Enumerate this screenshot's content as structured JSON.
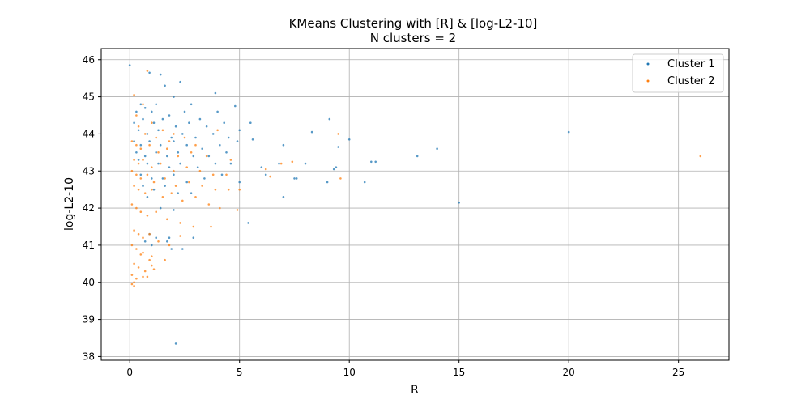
{
  "figure": {
    "title_line1": "KMeans Clustering with [R] & [log-L2-10]",
    "title_line2": "N clusters = 2"
  },
  "chart_data": {
    "type": "scatter",
    "title": "KMeans Clustering with [R] & [log-L2-10]",
    "subtitle": "N clusters = 2",
    "xlabel": "R",
    "ylabel": "log-L2-10",
    "xlim": [
      -1.3,
      27.3
    ],
    "ylim": [
      37.9,
      46.3
    ],
    "xticks": [
      0,
      5,
      10,
      15,
      20,
      25
    ],
    "yticks": [
      38,
      39,
      40,
      41,
      42,
      43,
      44,
      45,
      46
    ],
    "grid": true,
    "legend_position": "top-right",
    "series": [
      {
        "name": "Cluster 1",
        "color": "#1f77b4",
        "x": [
          0.0,
          0.9,
          1.4,
          2.3,
          1.6,
          3.9,
          2.0,
          2.8,
          1.2,
          0.5,
          0.3,
          0.7,
          1.0,
          1.8,
          2.5,
          3.2,
          4.0,
          4.8,
          0.2,
          0.6,
          1.1,
          1.5,
          2.1,
          2.7,
          3.5,
          4.3,
          5.0,
          0.4,
          0.8,
          1.3,
          1.9,
          2.4,
          3.0,
          3.8,
          4.5,
          5.5,
          0.2,
          0.5,
          0.9,
          1.4,
          2.0,
          2.6,
          3.3,
          4.1,
          4.9,
          6.0,
          7.0,
          8.3,
          9.1,
          9.5,
          10.0,
          0.3,
          0.7,
          1.2,
          1.7,
          2.2,
          2.9,
          3.6,
          4.4,
          5.6,
          6.8,
          7.6,
          8.0,
          9.4,
          11.0,
          11.2,
          13.1,
          14.0,
          20.0,
          0.4,
          0.8,
          1.3,
          1.8,
          2.3,
          3.1,
          3.9,
          4.6,
          6.2,
          7.5,
          9.0,
          9.3,
          10.7,
          0.5,
          1.0,
          1.5,
          2.0,
          2.6,
          3.4,
          4.2,
          5.0,
          7.0,
          0.6,
          1.1,
          1.6,
          2.2,
          2.8,
          0.8,
          1.4,
          2.0,
          2.9,
          5.4,
          15.0,
          0.9,
          1.7,
          2.4,
          0.7,
          1.2,
          1.0,
          1.9,
          2.1,
          1.8
        ],
        "y": [
          45.85,
          45.65,
          45.6,
          45.4,
          45.3,
          45.1,
          45.0,
          44.8,
          44.8,
          44.8,
          44.6,
          44.7,
          44.6,
          44.5,
          44.6,
          44.4,
          44.6,
          44.75,
          44.3,
          44.4,
          44.3,
          44.4,
          44.2,
          44.3,
          44.2,
          44.3,
          44.1,
          44.1,
          44.0,
          44.1,
          43.9,
          44.0,
          43.9,
          44.0,
          43.9,
          44.3,
          43.8,
          43.7,
          43.8,
          43.7,
          43.8,
          43.7,
          43.6,
          43.7,
          43.8,
          43.1,
          43.7,
          44.05,
          44.4,
          43.65,
          43.85,
          43.5,
          43.4,
          43.5,
          43.4,
          43.5,
          43.4,
          43.4,
          43.5,
          43.85,
          43.2,
          42.8,
          43.2,
          43.1,
          43.25,
          43.25,
          43.4,
          43.6,
          44.05,
          43.3,
          43.2,
          43.2,
          43.1,
          43.2,
          43.1,
          43.2,
          43.2,
          42.9,
          42.8,
          42.7,
          43.05,
          42.7,
          42.9,
          42.8,
          42.8,
          42.9,
          42.7,
          42.8,
          42.9,
          42.7,
          42.3,
          42.6,
          42.5,
          42.6,
          42.4,
          42.4,
          42.3,
          42.0,
          41.95,
          41.2,
          41.6,
          42.15,
          41.3,
          41.1,
          40.9,
          41.1,
          41.2,
          41.0,
          40.9,
          38.35,
          41.2
        ],
        "marker_size": 2
      },
      {
        "name": "Cluster 2",
        "color": "#ff7f0e",
        "x": [
          0.8,
          0.2,
          0.3,
          0.6,
          1.0,
          1.5,
          2.0,
          0.4,
          0.7,
          1.2,
          1.8,
          2.5,
          3.0,
          0.1,
          0.3,
          0.5,
          0.9,
          1.3,
          1.7,
          2.2,
          2.8,
          3.5,
          4.0,
          4.6,
          0.2,
          0.4,
          0.6,
          1.0,
          1.4,
          2.0,
          2.6,
          3.2,
          3.8,
          4.4,
          6.2,
          6.9,
          7.4,
          9.5,
          0.1,
          0.3,
          0.5,
          0.8,
          1.1,
          1.6,
          2.1,
          2.7,
          3.3,
          3.9,
          4.5,
          5.0,
          6.4,
          9.6,
          0.2,
          0.4,
          0.7,
          1.0,
          1.5,
          1.9,
          2.4,
          3.0,
          3.6,
          4.1,
          4.9,
          0.1,
          0.3,
          0.5,
          0.8,
          1.2,
          1.7,
          2.3,
          2.9,
          3.7,
          0.2,
          0.4,
          0.6,
          0.9,
          1.3,
          1.8,
          0.1,
          0.3,
          0.6,
          1.0,
          1.6,
          2.3,
          0.2,
          0.4,
          0.7,
          1.1,
          0.1,
          0.3,
          0.6,
          0.9,
          0.2,
          0.5,
          0.8,
          1.0,
          0.1,
          0.2,
          26.0
        ],
        "y": [
          45.7,
          45.05,
          44.5,
          44.8,
          44.3,
          44.1,
          44.0,
          44.2,
          44.0,
          43.9,
          43.8,
          43.9,
          43.7,
          43.8,
          43.7,
          43.6,
          43.7,
          43.5,
          43.6,
          43.4,
          43.5,
          43.4,
          44.1,
          43.3,
          43.3,
          43.2,
          43.3,
          43.1,
          43.2,
          43.0,
          43.1,
          43.0,
          42.9,
          42.9,
          43.05,
          43.2,
          43.25,
          44.0,
          43.0,
          42.9,
          42.8,
          42.9,
          42.7,
          42.8,
          42.6,
          42.7,
          42.6,
          42.5,
          42.5,
          42.5,
          42.85,
          42.8,
          42.6,
          42.5,
          42.4,
          42.5,
          42.3,
          42.4,
          42.2,
          42.3,
          42.1,
          42.0,
          41.95,
          42.1,
          42.0,
          41.9,
          41.8,
          41.9,
          41.7,
          41.6,
          41.5,
          41.5,
          41.4,
          41.3,
          41.2,
          41.3,
          41.1,
          41.0,
          41.0,
          40.9,
          40.8,
          40.7,
          40.6,
          41.25,
          40.5,
          40.4,
          40.3,
          40.35,
          40.2,
          40.1,
          40.15,
          40.6,
          40.0,
          40.75,
          40.15,
          40.45,
          39.95,
          39.9,
          43.4
        ],
        "marker_size": 2
      }
    ]
  }
}
